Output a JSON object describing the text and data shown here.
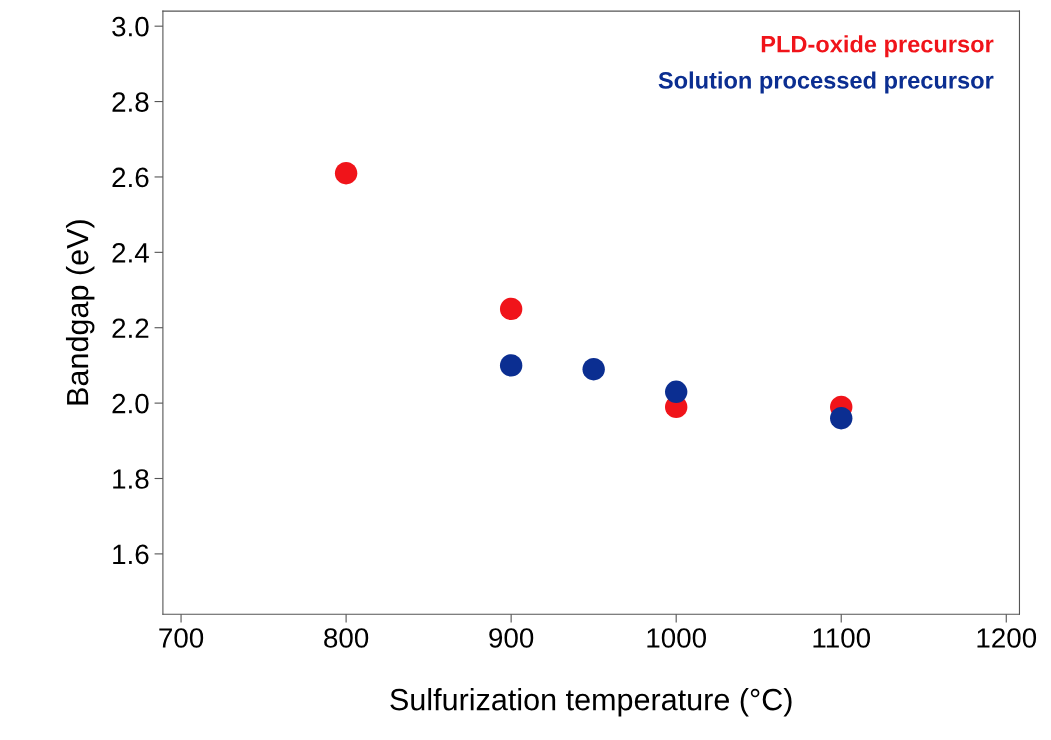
{
  "chart_data": {
    "type": "scatter",
    "xlabel": "Sulfurization temperature (°C)",
    "ylabel": "Bandgap (eV)",
    "series": [
      {
        "name": "PLD-oxide precursor",
        "color": "#f0141a",
        "x": [
          800,
          900,
          1000,
          1100
        ],
        "values": [
          2.61,
          2.25,
          1.99,
          1.99
        ]
      },
      {
        "name": "Solution processed precursor",
        "color": "#0b2e91",
        "x": [
          900,
          950,
          1000,
          1100
        ],
        "values": [
          2.1,
          2.09,
          2.03,
          1.96
        ]
      }
    ],
    "xlim": [
      689,
      1208
    ],
    "ylim": [
      1.44,
      3.04
    ],
    "xticks": [
      700,
      800,
      900,
      1000,
      1100,
      1200
    ],
    "yticks": [
      {
        "value": 1.6,
        "label": "1.6"
      },
      {
        "value": 1.8,
        "label": "1.8"
      },
      {
        "value": 2.0,
        "label": "2.0"
      },
      {
        "value": 2.2,
        "label": "2.2"
      },
      {
        "value": 2.4,
        "label": "2.4"
      },
      {
        "value": 2.6,
        "label": "2.6"
      },
      {
        "value": 2.8,
        "label": "2.8"
      },
      {
        "value": 3.0,
        "label": "3.0"
      }
    ],
    "marker": "circle",
    "legend": "top right",
    "grid": false
  }
}
